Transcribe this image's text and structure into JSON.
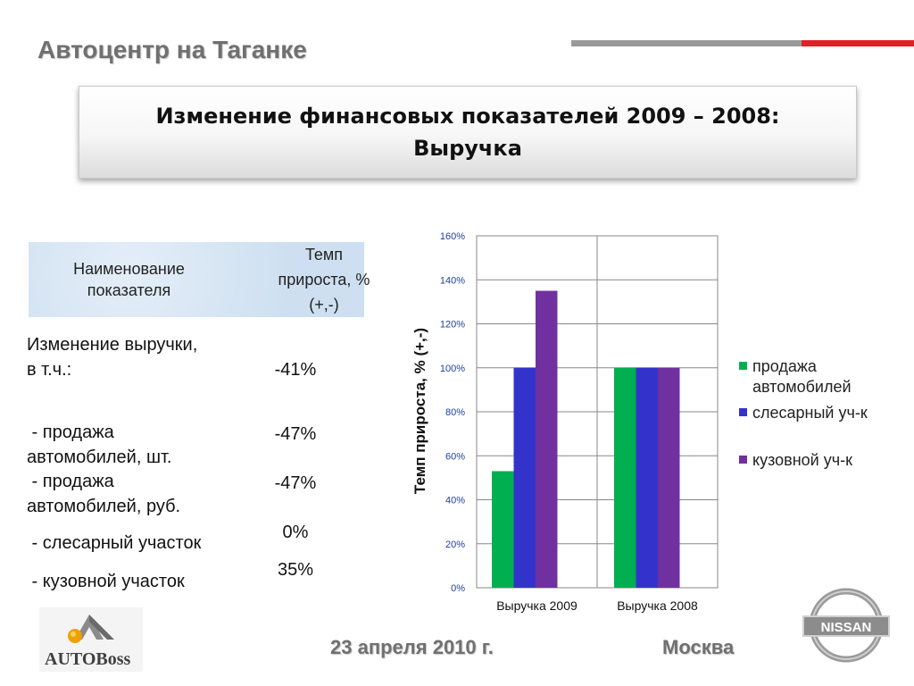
{
  "header": {
    "company": "Автоцентр на Таганке",
    "title_line1": "Изменение финансовых показателей 2009 – 2008:",
    "title_line2": "Выручка"
  },
  "table": {
    "header_name": [
      "Наименование",
      "показателя"
    ],
    "header_rate": [
      "Темп",
      "прироста, %",
      "(+,-)"
    ],
    "rows": [
      {
        "label": [
          "Изменение выручки,",
          "в т.ч.:"
        ],
        "value": "-41%"
      },
      {
        "label": [
          " - продажа",
          "автомобилей, шт."
        ],
        "value": "-47%"
      },
      {
        "label": [
          " - продажа",
          "автомобилей, руб."
        ],
        "value": "-47%"
      },
      {
        "label": [
          " - слесарный участок"
        ],
        "value": "0%"
      },
      {
        "label": [
          " - кузовной участок"
        ],
        "value": "35%"
      }
    ]
  },
  "chart_data": {
    "type": "bar",
    "categories": [
      "Выручка 2009",
      "Выручка 2008"
    ],
    "series": [
      {
        "name": "продажа автомобилей",
        "values": [
          53,
          100
        ],
        "color": "#00b050"
      },
      {
        "name": "слесарный уч-к",
        "values": [
          100,
          100
        ],
        "color": "#3333cc"
      },
      {
        "name": "кузовной уч-к",
        "values": [
          135,
          100
        ],
        "color": "#7030a0"
      }
    ],
    "ylabel": "Темп прироста, % (+,-)",
    "ylim": [
      0,
      160
    ],
    "yticks": [
      "0%",
      "20%",
      "40%",
      "60%",
      "80%",
      "100%",
      "120%",
      "140%",
      "160%"
    ],
    "tick_color": "#1f3fa0",
    "grid": true,
    "legend_position": "right",
    "legend_labels": [
      [
        "продажа",
        "автомобилей"
      ],
      [
        "слесарный уч-к"
      ],
      [
        "кузовной уч-к"
      ]
    ]
  },
  "footer": {
    "date": "23 апреля 2010 г.",
    "city": "Москва",
    "logo_left_text": "AUTOBoss",
    "logo_right_text": "NISSAN"
  },
  "colors": {
    "accent_red": "#e31e24",
    "accent_gray": "#9a9a9a",
    "table_header_bg": "#d6e6f4"
  }
}
